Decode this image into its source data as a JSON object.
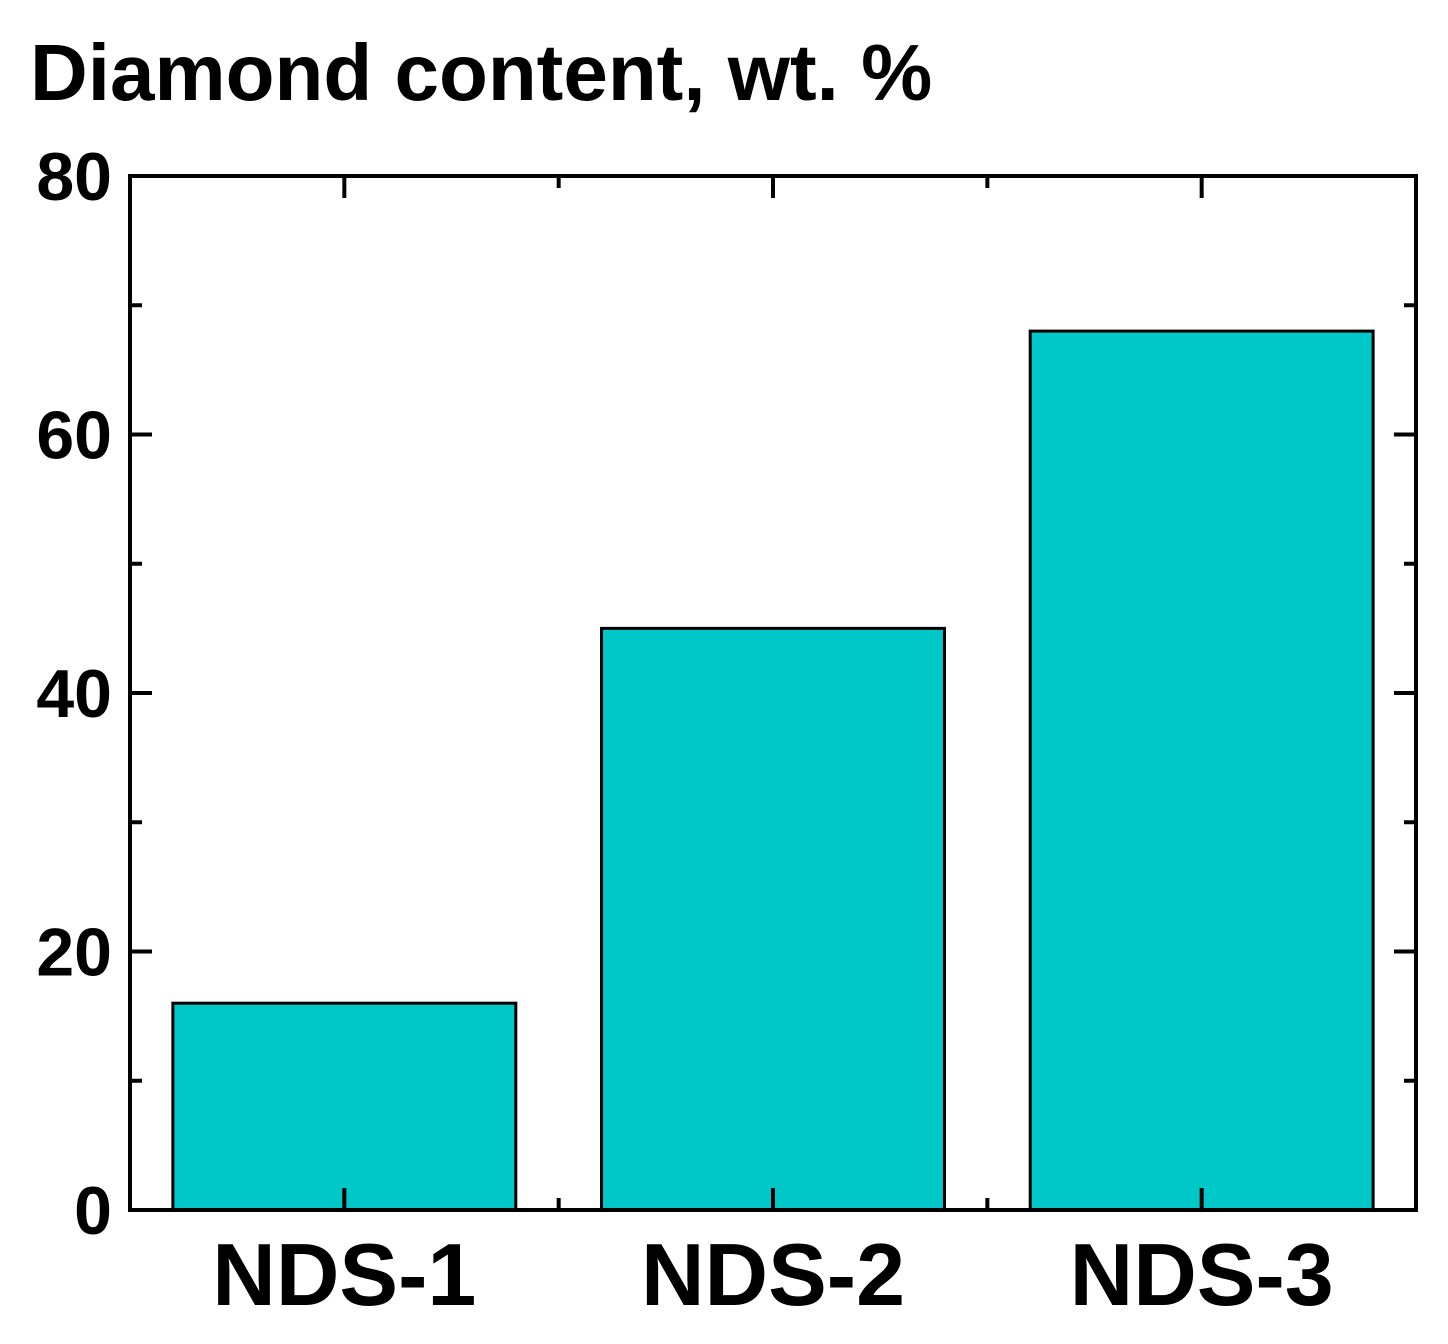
{
  "chart_data": {
    "type": "bar",
    "title": "Diamond content, wt. %",
    "xlabel": "",
    "ylabel": "",
    "categories": [
      "NDS-1",
      "NDS-2",
      "NDS-3"
    ],
    "values": [
      16,
      45,
      68
    ],
    "ylim": [
      0,
      80
    ],
    "yticks": [
      "0",
      "20",
      "40",
      "60",
      "80"
    ],
    "grid": false,
    "legend": "none",
    "bar_color": "#00C8C8",
    "edge_color": "#000000"
  }
}
